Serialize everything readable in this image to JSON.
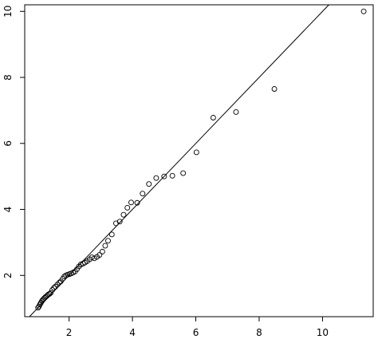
{
  "chart_data": {
    "type": "scatter",
    "title": "",
    "xlabel": "",
    "ylabel": "",
    "xlim": [
      0.6,
      11.6
    ],
    "ylim": [
      0.75,
      10.2
    ],
    "x_ticks": [
      2,
      4,
      6,
      8,
      10
    ],
    "x_tick_labels": [
      "2",
      "4",
      "6",
      "8",
      "10"
    ],
    "y_ticks": [
      2,
      4,
      6,
      8,
      10
    ],
    "y_tick_labels": [
      "2",
      "4",
      "6",
      "8",
      "10"
    ],
    "reference_line": {
      "type": "abline",
      "intercept": 0,
      "slope": 1
    },
    "grid": false,
    "legend": "none",
    "marker": "open-circle",
    "series": [
      {
        "x": [
          1.02,
          1.05,
          1.08,
          1.11,
          1.14,
          1.17,
          1.2,
          1.23,
          1.26,
          1.3,
          1.34,
          1.38,
          1.42,
          1.47,
          1.52,
          1.57,
          1.63,
          1.69,
          1.74,
          1.8,
          1.85,
          1.9,
          1.95,
          2.01,
          2.07,
          2.13,
          2.19,
          2.25,
          2.31,
          2.37,
          2.44,
          2.5,
          2.57,
          2.65,
          2.72,
          2.8,
          2.88,
          2.96,
          3.05,
          3.14,
          3.23,
          3.35,
          3.48,
          3.6,
          3.72,
          3.84,
          3.96,
          4.15,
          4.32,
          4.52,
          4.75,
          5.0,
          5.26,
          5.6,
          6.02,
          6.55,
          7.27,
          8.48,
          11.3
        ],
        "y": [
          1.02,
          1.06,
          1.12,
          1.17,
          1.22,
          1.26,
          1.29,
          1.32,
          1.35,
          1.38,
          1.42,
          1.44,
          1.47,
          1.56,
          1.62,
          1.66,
          1.72,
          1.78,
          1.82,
          1.9,
          1.97,
          2.0,
          2.02,
          2.04,
          2.06,
          2.09,
          2.12,
          2.19,
          2.27,
          2.33,
          2.36,
          2.39,
          2.43,
          2.49,
          2.55,
          2.52,
          2.56,
          2.62,
          2.72,
          2.9,
          3.05,
          3.24,
          3.58,
          3.63,
          3.84,
          4.05,
          4.21,
          4.2,
          4.48,
          4.77,
          4.95,
          5.0,
          5.02,
          5.1,
          5.73,
          6.78,
          6.95,
          7.65,
          10.0
        ]
      }
    ]
  }
}
